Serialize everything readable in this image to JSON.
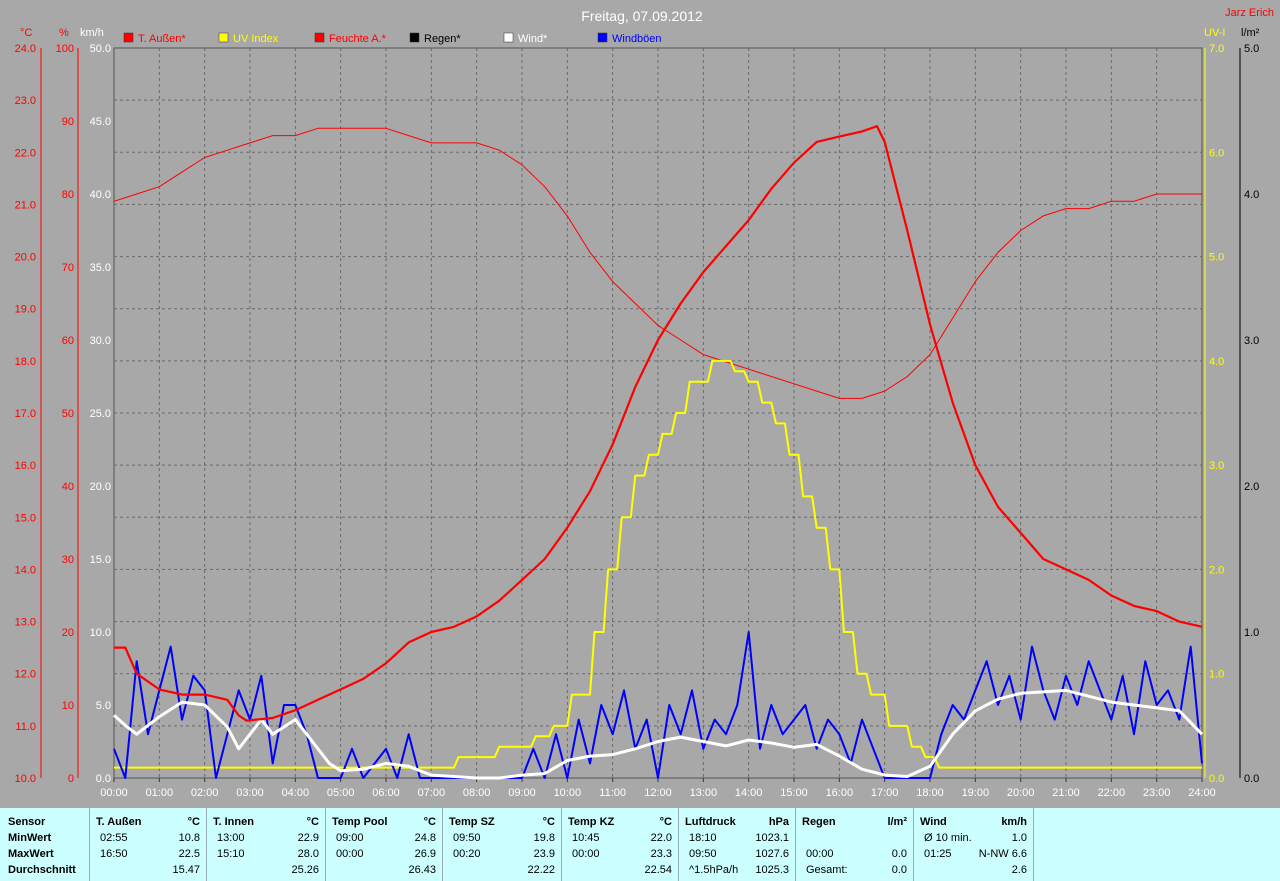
{
  "chart_data": {
    "type": "line",
    "title": "Freitag, 07.09.2012",
    "author": "Jarz Erich",
    "axis_units": {
      "temp": "°C",
      "humidity": "%",
      "wind": "km/h",
      "uv": "UV-I",
      "rain": "l/m²"
    },
    "temp_axis": {
      "range": [
        10,
        24
      ],
      "ticks": [
        "24.0",
        "23.0",
        "22.0",
        "21.0",
        "20.0",
        "19.0",
        "18.0",
        "17.0",
        "16.0",
        "15.0",
        "14.0",
        "13.0",
        "12.0",
        "11.0",
        "10.0"
      ]
    },
    "humidity_axis": {
      "range": [
        0,
        100
      ],
      "ticks": [
        "100",
        "90",
        "80",
        "70",
        "60",
        "50",
        "40",
        "30",
        "20",
        "10",
        "0"
      ]
    },
    "wind_axis": {
      "range": [
        0,
        50
      ],
      "ticks": [
        "50.0",
        "45.0",
        "40.0",
        "35.0",
        "30.0",
        "25.0",
        "20.0",
        "15.0",
        "10.0",
        "5.0",
        "0.0"
      ]
    },
    "uv_axis": {
      "range": [
        0,
        7
      ],
      "ticks": [
        "7.0",
        "6.0",
        "5.0",
        "4.0",
        "3.0",
        "2.0",
        "1.0",
        "0.0"
      ]
    },
    "rain_axis": {
      "range": [
        0,
        5
      ],
      "ticks": [
        "5.0",
        "4.0",
        "3.0",
        "2.0",
        "1.0",
        "0.0"
      ]
    },
    "x_ticks": [
      "00:00",
      "01:00",
      "02:00",
      "03:00",
      "04:00",
      "05:00",
      "06:00",
      "07:00",
      "08:00",
      "09:00",
      "10:00",
      "11:00",
      "12:00",
      "13:00",
      "14:00",
      "15:00",
      "16:00",
      "17:00",
      "18:00",
      "19:00",
      "20:00",
      "21:00",
      "22:00",
      "23:00",
      "24:00"
    ],
    "grid": true,
    "legend": [
      {
        "label": "T. Außen*",
        "color": "#ff0000"
      },
      {
        "label": "UV Index",
        "color": "#ffff00"
      },
      {
        "label": "Feuchte A.*",
        "color": "#ff0000"
      },
      {
        "label": "Regen*",
        "color": "#000000"
      },
      {
        "label": "Wind*",
        "color": "#ffffff"
      },
      {
        "label": "Windböen",
        "color": "#0000ff"
      }
    ],
    "series": [
      {
        "name": "T. Außen",
        "axis": "temp",
        "color": "#ff0000",
        "x": [
          0,
          0.25,
          0.5,
          1,
          1.5,
          2,
          2.5,
          2.75,
          2.92,
          3.5,
          4,
          4.5,
          5,
          5.5,
          6,
          6.5,
          7,
          7.5,
          8,
          8.5,
          9,
          9.5,
          10,
          10.5,
          11,
          11.5,
          12,
          12.5,
          13,
          13.5,
          14,
          14.5,
          15,
          15.5,
          16,
          16.5,
          16.83,
          17,
          17.5,
          18,
          18.5,
          19,
          19.5,
          20,
          20.5,
          21,
          21.5,
          22,
          22.5,
          23,
          23.5,
          24
        ],
        "y": [
          12.5,
          12.5,
          12.0,
          11.7,
          11.6,
          11.6,
          11.5,
          11.2,
          11.1,
          11.15,
          11.3,
          11.5,
          11.7,
          11.9,
          12.2,
          12.6,
          12.8,
          12.9,
          13.1,
          13.4,
          13.8,
          14.2,
          14.8,
          15.5,
          16.4,
          17.5,
          18.4,
          19.1,
          19.7,
          20.2,
          20.7,
          21.3,
          21.8,
          22.2,
          22.3,
          22.4,
          22.5,
          22.2,
          20.5,
          18.7,
          17.2,
          16.0,
          15.2,
          14.7,
          14.2,
          14.0,
          13.8,
          13.5,
          13.3,
          13.2,
          13.0,
          12.9
        ]
      },
      {
        "name": "Feuchte A.",
        "axis": "humidity",
        "color": "#ff0000",
        "x": [
          0,
          0.5,
          1,
          1.5,
          2,
          2.5,
          3,
          3.5,
          4,
          4.5,
          5,
          5.5,
          6,
          6.5,
          7,
          7.5,
          8,
          8.5,
          9,
          9.5,
          10,
          10.5,
          11,
          11.5,
          12,
          12.5,
          13,
          13.5,
          14,
          14.5,
          15,
          15.5,
          16,
          16.5,
          17,
          17.5,
          18,
          18.5,
          19,
          19.5,
          20,
          20.5,
          21,
          21.5,
          22,
          22.5,
          23,
          23.5,
          24
        ],
        "y": [
          79,
          80,
          81,
          83,
          85,
          86,
          87,
          88,
          88,
          89,
          89,
          89,
          89,
          88,
          87,
          87,
          87,
          86,
          84,
          81,
          77,
          72,
          68,
          65,
          62,
          60,
          58,
          57,
          56,
          55,
          54,
          53,
          52,
          52,
          53,
          55,
          58,
          63,
          68,
          72,
          75,
          77,
          78,
          78,
          79,
          79,
          80,
          80,
          80
        ]
      },
      {
        "name": "UV Index",
        "axis": "uv",
        "color": "#ffff00",
        "x": [
          0,
          7.5,
          7.6,
          8.4,
          8.5,
          9.2,
          9.3,
          9.6,
          9.7,
          10,
          10.1,
          10.5,
          10.6,
          10.8,
          10.9,
          11.1,
          11.2,
          11.4,
          11.5,
          11.7,
          11.8,
          12,
          12.1,
          12.3,
          12.4,
          12.6,
          12.7,
          13.1,
          13.2,
          13.6,
          13.7,
          13.9,
          14,
          14.2,
          14.3,
          14.5,
          14.6,
          14.8,
          14.9,
          15.1,
          15.2,
          15.4,
          15.5,
          15.7,
          15.8,
          16,
          16.1,
          16.3,
          16.4,
          16.6,
          16.7,
          17,
          17.1,
          17.5,
          17.6,
          17.8,
          17.9,
          18.1,
          18.2,
          24
        ],
        "y": [
          0.1,
          0.1,
          0.2,
          0.2,
          0.3,
          0.3,
          0.4,
          0.4,
          0.5,
          0.5,
          0.8,
          0.8,
          1.4,
          1.4,
          2.0,
          2.0,
          2.5,
          2.5,
          2.9,
          2.9,
          3.1,
          3.1,
          3.3,
          3.3,
          3.5,
          3.5,
          3.8,
          3.8,
          4.0,
          4.0,
          3.9,
          3.9,
          3.8,
          3.8,
          3.6,
          3.6,
          3.4,
          3.4,
          3.1,
          3.1,
          2.7,
          2.7,
          2.4,
          2.4,
          2.0,
          2.0,
          1.4,
          1.4,
          1.0,
          1.0,
          0.8,
          0.8,
          0.5,
          0.5,
          0.3,
          0.3,
          0.2,
          0.2,
          0.1,
          0.1
        ]
      },
      {
        "name": "Wind",
        "axis": "wind",
        "color": "#ffffff",
        "x": [
          0,
          0.25,
          0.5,
          1,
          1.5,
          2,
          2.5,
          2.75,
          3,
          3.25,
          3.5,
          4,
          4.5,
          4.75,
          5,
          5.5,
          6,
          6.5,
          7,
          7.5,
          8,
          8.5,
          9,
          9.5,
          10,
          10.5,
          11,
          11.5,
          12,
          12.5,
          13,
          13.5,
          14,
          14.5,
          15,
          15.5,
          16,
          16.5,
          17,
          17.5,
          18,
          18.5,
          19,
          19.5,
          20,
          20.5,
          21,
          21.5,
          22,
          22.5,
          23,
          23.5,
          24
        ],
        "y": [
          4.3,
          3.6,
          3.0,
          4.2,
          5.2,
          5.0,
          3.5,
          2.0,
          3.0,
          4.0,
          3.0,
          4.0,
          2.0,
          1.0,
          0.5,
          0.6,
          1.0,
          0.8,
          0.2,
          0.1,
          0.0,
          0.0,
          0.2,
          0.3,
          1.2,
          1.5,
          1.6,
          2.0,
          2.5,
          2.8,
          2.5,
          2.2,
          2.6,
          2.4,
          2.1,
          2.3,
          1.5,
          0.6,
          0.2,
          0.1,
          0.8,
          3.0,
          4.6,
          5.4,
          5.8,
          5.9,
          6.0,
          5.6,
          5.2,
          5.0,
          4.8,
          4.6,
          3.0
        ]
      },
      {
        "name": "Windböen",
        "axis": "wind",
        "color": "#0000ff",
        "x": [
          0,
          0.25,
          0.5,
          0.75,
          1,
          1.25,
          1.5,
          1.75,
          2,
          2.25,
          2.5,
          2.75,
          3,
          3.25,
          3.5,
          3.75,
          4,
          4.25,
          4.5,
          4.75,
          5,
          5.25,
          5.5,
          5.75,
          6,
          6.25,
          6.5,
          6.75,
          7,
          7.25,
          7.5,
          7.75,
          8,
          8.25,
          8.5,
          8.75,
          9,
          9.25,
          9.5,
          9.75,
          10,
          10.25,
          10.5,
          10.75,
          11,
          11.25,
          11.5,
          11.75,
          12,
          12.25,
          12.5,
          12.75,
          13,
          13.25,
          13.5,
          13.75,
          14,
          14.25,
          14.5,
          14.75,
          15,
          15.25,
          15.5,
          15.75,
          16,
          16.25,
          16.5,
          16.75,
          17,
          17.25,
          17.5,
          17.75,
          18,
          18.25,
          18.5,
          18.75,
          19,
          19.25,
          19.5,
          19.75,
          20,
          20.25,
          20.5,
          20.75,
          21,
          21.25,
          21.5,
          21.75,
          22,
          22.25,
          22.5,
          22.75,
          23,
          23.25,
          23.5,
          23.75,
          24
        ],
        "y": [
          2,
          0,
          8,
          3,
          6,
          9,
          4,
          7,
          6,
          0,
          3,
          6,
          4,
          7,
          1,
          5,
          5,
          3,
          0,
          0,
          0,
          2,
          0,
          1,
          2,
          0,
          3,
          0,
          0,
          0,
          0,
          0,
          0,
          0,
          0,
          0,
          0,
          2,
          0,
          3,
          0,
          4,
          1,
          5,
          3,
          6,
          2,
          4,
          0,
          5,
          3,
          6,
          2,
          4,
          3,
          5,
          10,
          2,
          5,
          3,
          4,
          5,
          2,
          4,
          3,
          1,
          4,
          2,
          0,
          0,
          0,
          0,
          0,
          3,
          5,
          4,
          6,
          8,
          5,
          7,
          4,
          9,
          6,
          4,
          7,
          5,
          8,
          6,
          4,
          7,
          3,
          8,
          5,
          6,
          4,
          9,
          1
        ]
      }
    ]
  },
  "stats": {
    "labels": {
      "sensor": "Sensor",
      "min": "MinWert",
      "max": "MaxWert",
      "avg": "Durchschnitt"
    },
    "blocks": [
      {
        "name": "T. Außen",
        "unit": "°C",
        "min_time": "02:55",
        "min_val": "10.8",
        "max_time": "16:50",
        "max_val": "22.5",
        "avg_time": "",
        "avg_val": "15.47"
      },
      {
        "name": "T. Innen",
        "unit": "°C",
        "min_time": "13:00",
        "min_val": "22.9",
        "max_time": "15:10",
        "max_val": "28.0",
        "avg_time": "",
        "avg_val": "25.26"
      },
      {
        "name": "Temp Pool",
        "unit": "°C",
        "min_time": "09:00",
        "min_val": "24.8",
        "max_time": "00:00",
        "max_val": "26.9",
        "avg_time": "",
        "avg_val": "26.43"
      },
      {
        "name": "Temp SZ",
        "unit": "°C",
        "min_time": "09:50",
        "min_val": "19.8",
        "max_time": "00:20",
        "max_val": "23.9",
        "avg_time": "",
        "avg_val": "22.22"
      },
      {
        "name": "Temp KZ",
        "unit": "°C",
        "min_time": "10:45",
        "min_val": "22.0",
        "max_time": "00:00",
        "max_val": "23.3",
        "avg_time": "",
        "avg_val": "22.54"
      },
      {
        "name": "Luftdruck",
        "unit": "hPa",
        "min_time": "18:10",
        "min_val": "1023.1",
        "max_time": "09:50",
        "max_val": "1027.6",
        "avg_time": "^1.5hPa/h",
        "avg_val": "1025.3"
      },
      {
        "name": "Regen",
        "unit": "l/m²",
        "min_time": "",
        "min_val": "",
        "max_time": "00:00",
        "max_val": "0.0",
        "avg_time": "Gesamt:",
        "avg_val": "0.0"
      },
      {
        "name": "Wind",
        "unit": "km/h",
        "min_time": "Ø 10 min.",
        "min_val": "1.0",
        "max_time": "01:25",
        "max_val": "N-NW 6.6",
        "avg_time": "",
        "avg_val": "2.6"
      }
    ]
  }
}
